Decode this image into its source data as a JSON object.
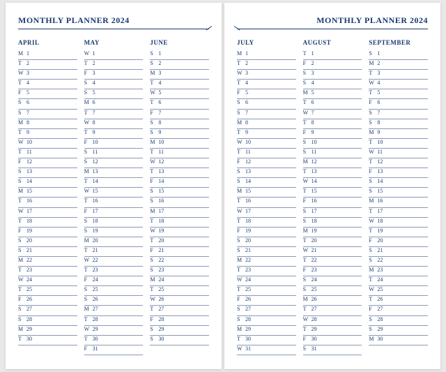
{
  "title": "MONTHLY PLANNER 2024",
  "colors": {
    "ink": "#1a3a6e",
    "rule": "#8a99b5",
    "paper": "#ffffff",
    "bg": "#e8e8e8"
  },
  "leftPage": {
    "months": [
      {
        "name": "APRIL",
        "startDow": 0,
        "numDays": 30
      },
      {
        "name": "MAY",
        "startDow": 2,
        "numDays": 31
      },
      {
        "name": "JUNE",
        "startDow": 5,
        "numDays": 30
      }
    ]
  },
  "rightPage": {
    "months": [
      {
        "name": "JULY",
        "startDow": 0,
        "numDays": 31
      },
      {
        "name": "AUGUST",
        "startDow": 3,
        "numDays": 31
      },
      {
        "name": "SEPTEMBER",
        "startDow": 6,
        "numDays": 30
      }
    ]
  },
  "dowLetters": [
    "M",
    "T",
    "W",
    "T",
    "F",
    "S",
    "S"
  ]
}
